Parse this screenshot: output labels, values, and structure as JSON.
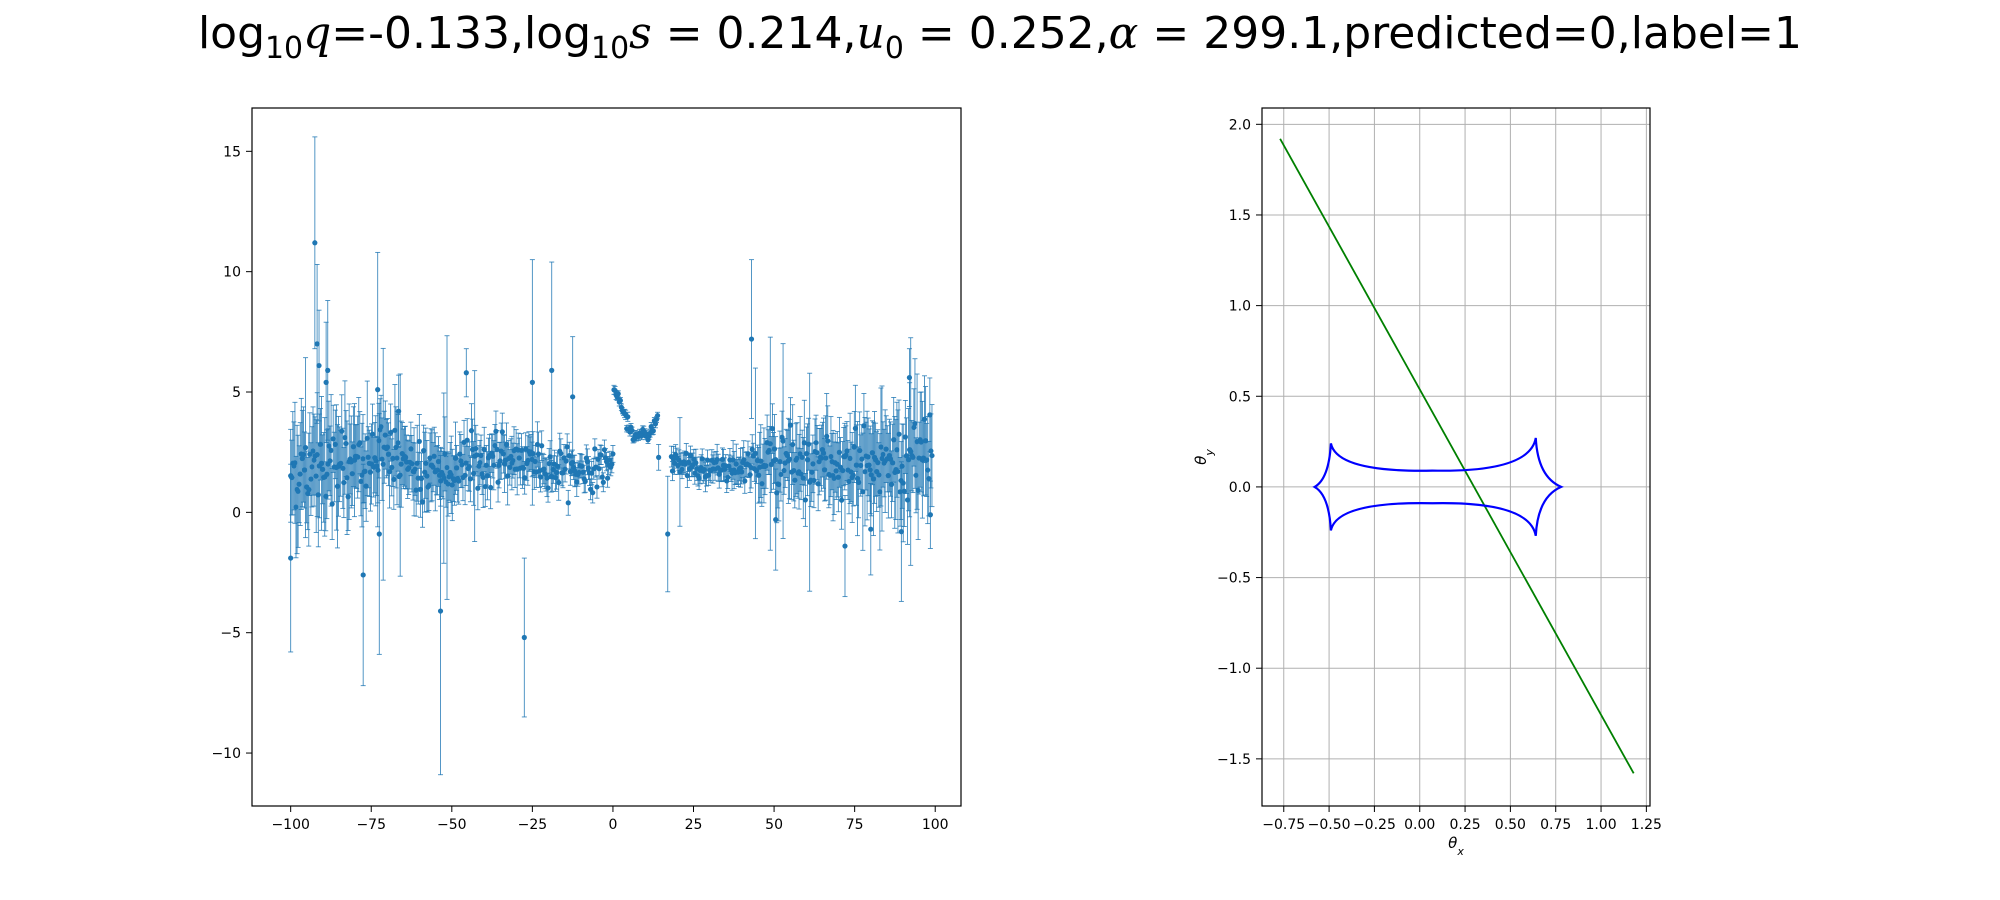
{
  "title": {
    "q_prefix": "log",
    "q_sub": "10",
    "q_var": "q",
    "q_val": "=-0.133,",
    "s_prefix": "log",
    "s_sub": "10",
    "s_var": "s",
    "s_val": " = 0.214,",
    "u_var": "u",
    "u_sub": "0",
    "u_val": " = 0.252,",
    "alpha_var": "α",
    "alpha_val": " = 299.1,",
    "tail": "predicted=0,label=1"
  },
  "chart_data": [
    {
      "type": "scatter",
      "subtype": "errorbar",
      "title": "",
      "xlabel": "",
      "ylabel": "",
      "xlim": [
        -112,
        108
      ],
      "ylim": [
        -12.2,
        16.8
      ],
      "xticks": [
        -100,
        -75,
        -50,
        -25,
        0,
        25,
        50,
        75,
        100
      ],
      "xtick_labels": [
        "−100",
        "−75",
        "−50",
        "−25",
        "0",
        "25",
        "50",
        "75",
        "100"
      ],
      "yticks": [
        -10,
        -5,
        0,
        5,
        10,
        15
      ],
      "ytick_labels": [
        "−10",
        "−5",
        "0",
        "5",
        "10",
        "15"
      ],
      "grid": false,
      "color": "#1f77b4",
      "baseline": 2.0,
      "x_range": [
        -100,
        99
      ],
      "gap": [
        16,
        18
      ],
      "bump": {
        "x_range": [
          0,
          14
        ],
        "y": [
          5.2,
          3.4
        ]
      },
      "highlighted_points": [
        {
          "x": -100,
          "y": -1.9,
          "err": 3.9
        },
        {
          "x": -92.5,
          "y": 11.2,
          "err": 4.4
        },
        {
          "x": -91.8,
          "y": 7.0,
          "err": 3.3
        },
        {
          "x": -91.2,
          "y": 6.1,
          "err": 2.3
        },
        {
          "x": -88.5,
          "y": 5.9,
          "err": 2.9
        },
        {
          "x": -89.0,
          "y": 5.4,
          "err": 2.5
        },
        {
          "x": -77.5,
          "y": -2.6,
          "err": 4.6
        },
        {
          "x": -73.0,
          "y": 5.1,
          "err": 5.7
        },
        {
          "x": -72.5,
          "y": -0.9,
          "err": 5.0
        },
        {
          "x": -66.5,
          "y": 4.2,
          "err": 1.5
        },
        {
          "x": -53.5,
          "y": -4.1,
          "err": 6.8
        },
        {
          "x": -45.5,
          "y": 5.8,
          "err": 1.0
        },
        {
          "x": -27.5,
          "y": -5.2,
          "err": 3.3
        },
        {
          "x": -25.0,
          "y": 5.4,
          "err": 5.1
        },
        {
          "x": -19.0,
          "y": 5.9,
          "err": 4.5
        },
        {
          "x": -12.5,
          "y": 4.8,
          "err": 2.5
        },
        {
          "x": 17.0,
          "y": -0.9,
          "err": 2.4
        },
        {
          "x": 43.0,
          "y": 7.2,
          "err": 3.3
        },
        {
          "x": 50.5,
          "y": -0.3,
          "err": 2.1
        },
        {
          "x": 72.0,
          "y": -1.4,
          "err": 2.1
        },
        {
          "x": 80.0,
          "y": -0.7,
          "err": 1.9
        },
        {
          "x": 89.5,
          "y": -0.8,
          "err": 2.9
        },
        {
          "x": 92.0,
          "y": 5.6,
          "err": 1.2
        },
        {
          "x": 98.5,
          "y": -0.1,
          "err": 1.4
        }
      ]
    },
    {
      "type": "line",
      "title": "",
      "xlabel": "θ_x",
      "ylabel": "θ_y",
      "xlim": [
        -0.87,
        1.27
      ],
      "ylim": [
        -1.76,
        2.09
      ],
      "xticks": [
        -0.75,
        -0.5,
        -0.25,
        0.0,
        0.25,
        0.5,
        0.75,
        1.0,
        1.25
      ],
      "xtick_labels": [
        "−0.75",
        "−0.50",
        "−0.25",
        "0.00",
        "0.25",
        "0.50",
        "0.75",
        "1.00",
        "1.25"
      ],
      "yticks": [
        -1.5,
        -1.0,
        -0.5,
        0.0,
        0.5,
        1.0,
        1.5,
        2.0
      ],
      "ytick_labels": [
        "−1.5",
        "−1.0",
        "−0.5",
        "0.0",
        "0.5",
        "1.0",
        "1.5",
        "2.0"
      ],
      "grid": true,
      "series": [
        {
          "name": "",
          "kind": "trajectory",
          "color": "#008000",
          "x": [
            -0.77,
            1.18
          ],
          "y": [
            1.92,
            -1.58
          ]
        },
        {
          "name": "",
          "kind": "caustic",
          "color": "#0000ff",
          "cusps": [
            {
              "x": -0.58,
              "y": 0.0
            },
            {
              "x": -0.49,
              "y": 0.24
            },
            {
              "x": 0.64,
              "y": 0.27
            },
            {
              "x": 0.78,
              "y": 0.0
            },
            {
              "x": 0.64,
              "y": -0.27
            },
            {
              "x": -0.49,
              "y": -0.24
            }
          ],
          "fold_extremes": {
            "top_y": 0.09,
            "bottom_y": -0.09
          }
        }
      ]
    }
  ]
}
